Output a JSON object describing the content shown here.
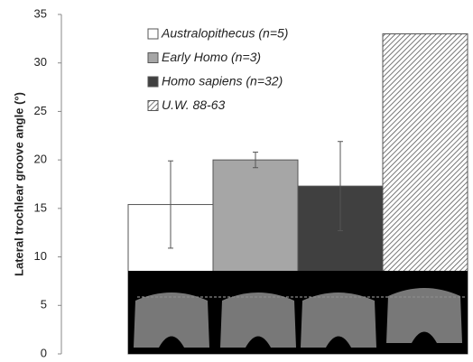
{
  "chart_data": {
    "type": "bar",
    "y_label": "Lateral trochlear groove angle (°)",
    "categories": [
      "Australopithecus (n=5)",
      "Early Homo (n=3)",
      "Homo sapiens (n=32)",
      "U.W. 88-63"
    ],
    "values": [
      15.4,
      20,
      17.3,
      33
    ],
    "errors": [
      4.5,
      0.8,
      4.6,
      null
    ],
    "colors": [
      "#ffffff",
      "#a6a6a6",
      "#404040",
      "#ffffff"
    ],
    "hatched": [
      false,
      false,
      false,
      true
    ],
    "ylim": [
      0,
      35
    ],
    "yticks": [
      0,
      5,
      10,
      15,
      20,
      25,
      30,
      35
    ]
  }
}
